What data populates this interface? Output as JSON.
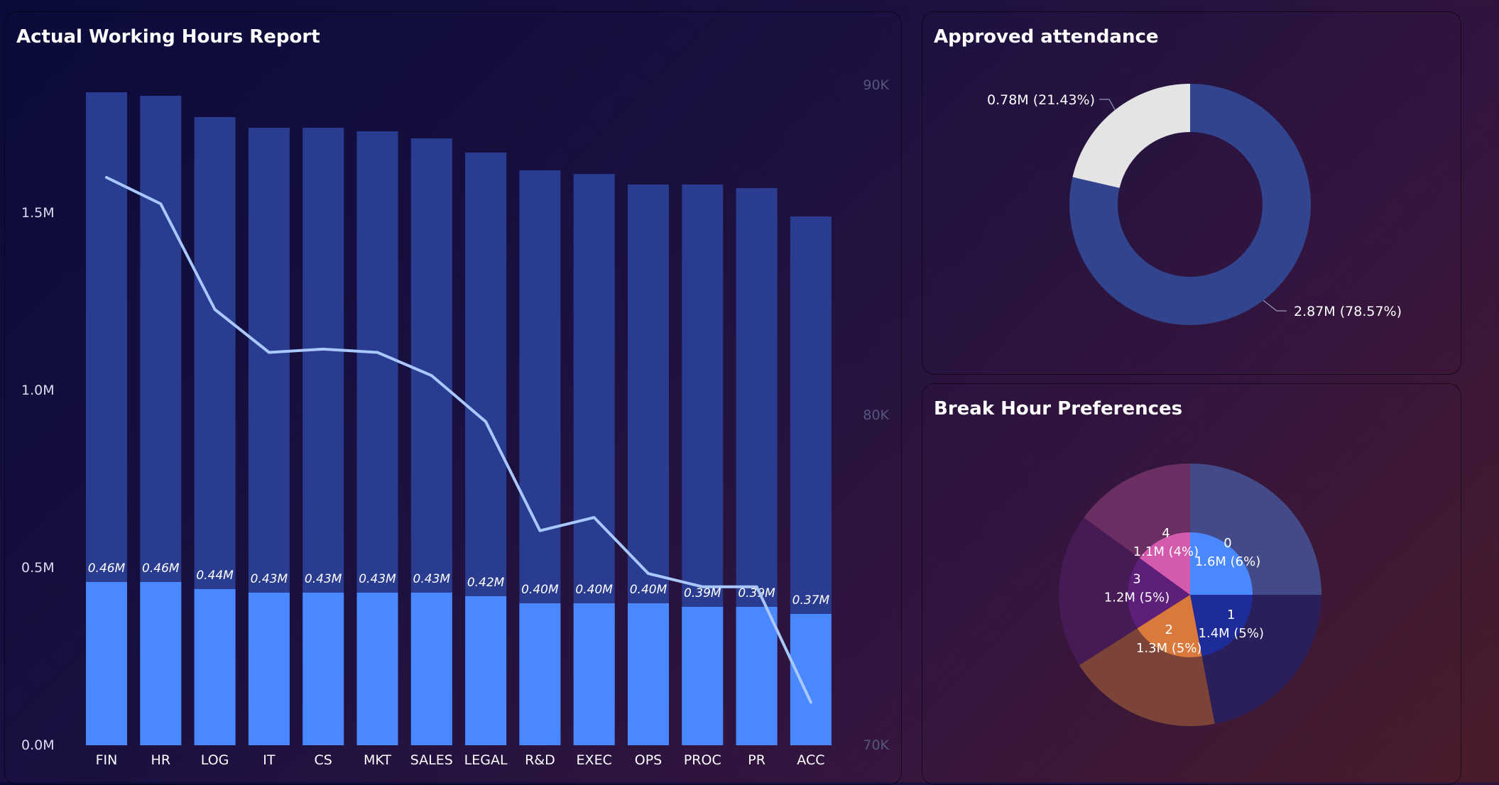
{
  "colors": {
    "bar_total": "#2a3c8f",
    "bar_highlight": "#4a88ff",
    "line": "#a8c8ff",
    "donut_main": "#32448e",
    "donut_other": "#e4e4e4"
  },
  "working_hours": {
    "title": "Actual Working Hours Report",
    "chart_data": {
      "type": "bar",
      "categories": [
        "FIN",
        "HR",
        "LOG",
        "IT",
        "CS",
        "MKT",
        "SALES",
        "LEGAL",
        "R&D",
        "EXEC",
        "OPS",
        "PROC",
        "PR",
        "ACC"
      ],
      "series": [
        {
          "values": [
            1.84,
            1.83,
            1.77,
            1.74,
            1.74,
            1.73,
            1.71,
            1.67,
            1.62,
            1.61,
            1.58,
            1.58,
            1.57,
            1.49
          ]
        },
        {
          "values": [
            0.46,
            0.46,
            0.44,
            0.43,
            0.43,
            0.43,
            0.43,
            0.42,
            0.4,
            0.4,
            0.4,
            0.39,
            0.39,
            0.37
          ]
        },
        {
          "type": "line",
          "axis": "right",
          "values": [
            87.2,
            86.4,
            83.2,
            81.9,
            82.0,
            81.9,
            81.2,
            79.8,
            76.5,
            76.9,
            75.2,
            74.8,
            74.8,
            71.3
          ]
        }
      ],
      "data_labels": [
        "0.46M",
        "0.46M",
        "0.44M",
        "0.43M",
        "0.43M",
        "0.43M",
        "0.43M",
        "0.42M",
        "0.40M",
        "0.40M",
        "0.40M",
        "0.39M",
        "0.39M",
        "0.37M"
      ],
      "y_ticks": [
        "0.0M",
        "0.5M",
        "1.0M",
        "1.5M"
      ],
      "y2_ticks": [
        "70K",
        "80K",
        "90K"
      ],
      "ylim": [
        0,
        2.0
      ],
      "y2lim": [
        70,
        91.5
      ]
    }
  },
  "attendance": {
    "title": "Approved attendance",
    "chart_data": {
      "type": "pie",
      "labels": [
        "0.78M (21.43%)",
        "2.87M (78.57%)"
      ],
      "values": [
        0.78,
        2.87
      ]
    }
  },
  "breaks": {
    "title": "Break Hour Preferences",
    "chart_data": {
      "type": "pie",
      "inner_slices": [
        {
          "id": "0",
          "value": "1.6M (6%)",
          "share": 0.25,
          "color": "#4a88ff"
        },
        {
          "id": "1",
          "value": "1.4M (5%)",
          "share": 0.22,
          "color": "#1e2c9a"
        },
        {
          "id": "2",
          "value": "1.3M (5%)",
          "share": 0.19,
          "color": "#d97a3c"
        },
        {
          "id": "3",
          "value": "1.2M (5%)",
          "share": 0.19,
          "color": "#5e1f7a"
        },
        {
          "id": "4",
          "value": "1.1M (4%)",
          "share": 0.15,
          "color": "#d45aae"
        }
      ],
      "outer_slices": [
        {
          "share": 0.25,
          "color": "#444a88"
        },
        {
          "share": 0.22,
          "color": "#2a1f5a"
        },
        {
          "share": 0.19,
          "color": "#7c4438"
        },
        {
          "share": 0.19,
          "color": "#461a54"
        },
        {
          "share": 0.15,
          "color": "#6a2e62"
        }
      ]
    }
  }
}
